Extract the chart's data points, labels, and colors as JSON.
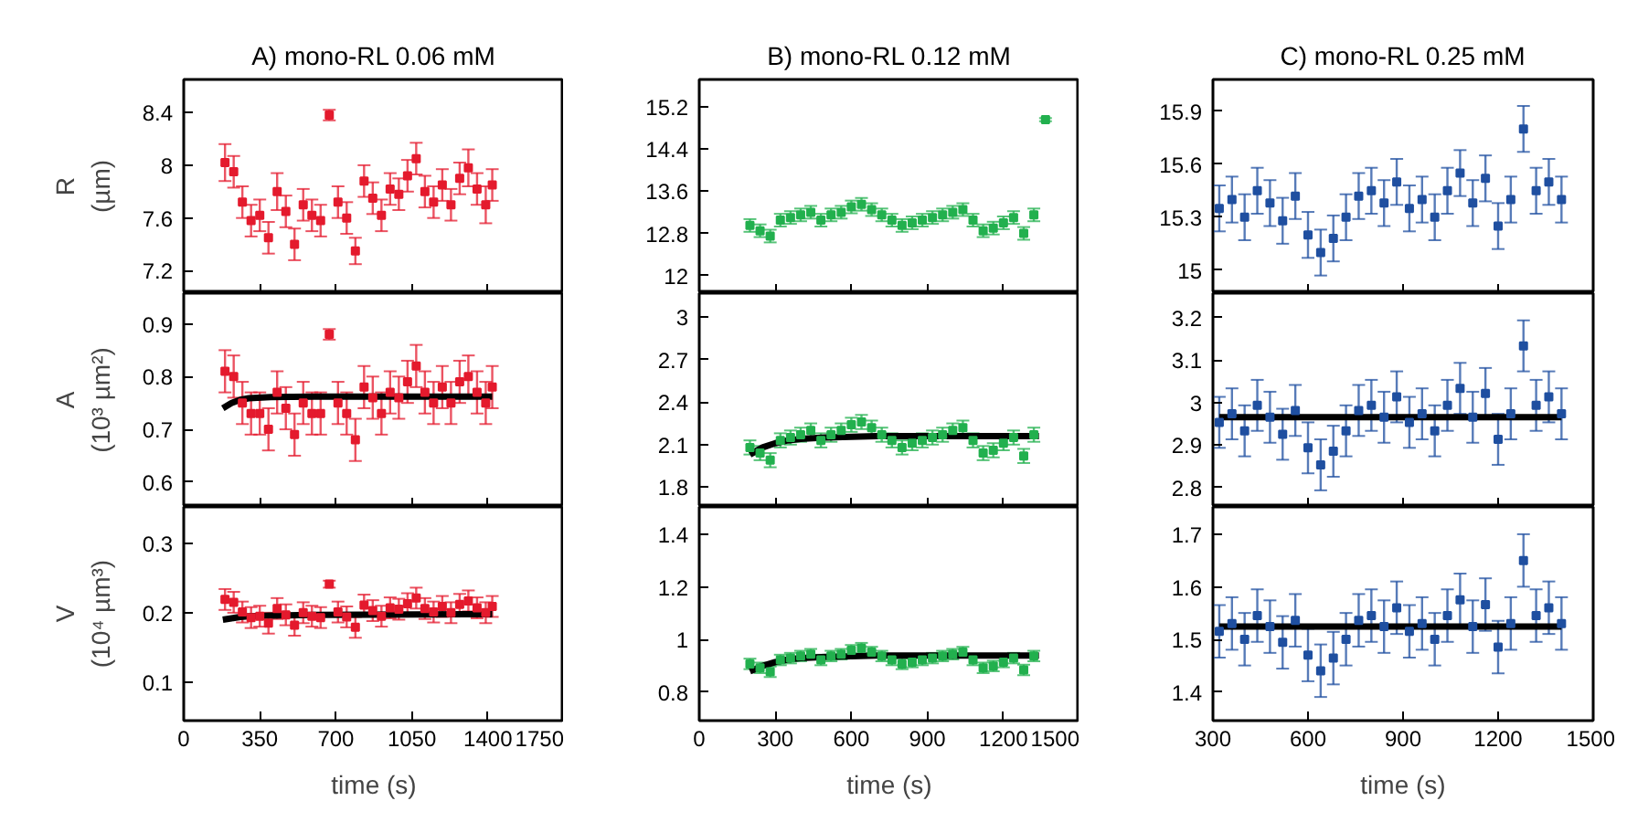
{
  "chart_data": [
    {
      "type": "scatter",
      "title": "A) mono-RL 0.06 mM",
      "ylabel": "R\n(µm)",
      "marker": "square",
      "tick_labels": "y",
      "xlim": [
        0,
        1750
      ],
      "xticks": [
        0,
        350,
        700,
        1050,
        1400,
        1750
      ],
      "ylim": [
        7.03,
        8.65
      ],
      "yticks": [
        7.2,
        7.6,
        8,
        8.4
      ],
      "x": [
        190,
        230,
        270,
        310,
        350,
        390,
        430,
        470,
        510,
        550,
        590,
        630,
        670,
        710,
        750,
        790,
        830,
        870,
        910,
        950,
        990,
        1030,
        1070,
        1110,
        1150,
        1190,
        1230,
        1270,
        1310,
        1350,
        1390,
        1420
      ],
      "series": [
        {
          "color": "#e41a2d",
          "values": [
            8.02,
            7.95,
            7.72,
            7.58,
            7.62,
            7.45,
            7.8,
            7.65,
            7.4,
            7.7,
            7.62,
            7.58,
            8.38,
            7.72,
            7.6,
            7.35,
            7.88,
            7.75,
            7.62,
            7.82,
            7.78,
            7.92,
            8.05,
            7.8,
            7.72,
            7.85,
            7.7,
            7.9,
            7.98,
            7.82,
            7.7,
            7.85
          ],
          "errors": [
            0.14,
            0.12,
            0.12,
            0.12,
            0.12,
            0.12,
            0.14,
            0.12,
            0.12,
            0.12,
            0.12,
            0.12,
            0.04,
            0.12,
            0.12,
            0.1,
            0.12,
            0.12,
            0.12,
            0.12,
            0.12,
            0.12,
            0.12,
            0.12,
            0.12,
            0.12,
            0.12,
            0.12,
            0.14,
            0.12,
            0.14,
            0.12
          ]
        }
      ]
    },
    {
      "type": "scatter",
      "title": "B) mono-RL 0.12 mM",
      "marker": "square",
      "tick_labels": "y",
      "xlim": [
        0,
        1500
      ],
      "xticks": [
        0,
        300,
        600,
        900,
        1200,
        1500
      ],
      "ylim": [
        11.67,
        15.71
      ],
      "yticks": [
        12,
        12.8,
        13.6,
        14.4,
        15.2
      ],
      "x": [
        200,
        240,
        280,
        320,
        360,
        400,
        440,
        480,
        520,
        560,
        600,
        640,
        680,
        720,
        760,
        800,
        840,
        880,
        920,
        960,
        1000,
        1040,
        1080,
        1120,
        1160,
        1200,
        1240,
        1280,
        1320,
        1366
      ],
      "series": [
        {
          "color": "#22b04e",
          "values": [
            12.95,
            12.85,
            12.75,
            13.05,
            13.1,
            13.15,
            13.2,
            13.05,
            13.15,
            13.2,
            13.3,
            13.35,
            13.25,
            13.15,
            13.05,
            12.95,
            13.0,
            13.05,
            13.1,
            13.15,
            13.2,
            13.25,
            13.05,
            12.85,
            12.9,
            13.0,
            13.1,
            12.8,
            13.15,
            14.95
          ],
          "errors": [
            0.12,
            0.12,
            0.12,
            0.12,
            0.12,
            0.12,
            0.12,
            0.12,
            0.12,
            0.12,
            0.12,
            0.12,
            0.12,
            0.12,
            0.12,
            0.12,
            0.12,
            0.12,
            0.12,
            0.12,
            0.12,
            0.12,
            0.12,
            0.12,
            0.12,
            0.12,
            0.12,
            0.12,
            0.12,
            0.03
          ]
        }
      ]
    },
    {
      "type": "scatter",
      "title": "C) mono-RL 0.25 mM",
      "marker": "square",
      "tick_labels": "y",
      "xlim": [
        300,
        1500
      ],
      "xticks": [
        300,
        600,
        900,
        1200,
        1500
      ],
      "ylim": [
        14.87,
        16.08
      ],
      "yticks": [
        15,
        15.3,
        15.6,
        15.9
      ],
      "x": [
        320,
        360,
        400,
        440,
        480,
        520,
        560,
        600,
        640,
        680,
        720,
        760,
        800,
        840,
        880,
        920,
        960,
        1000,
        1040,
        1080,
        1120,
        1160,
        1200,
        1240,
        1280,
        1320,
        1360,
        1400
      ],
      "series": [
        {
          "color": "#1f4fa0",
          "values": [
            15.35,
            15.4,
            15.3,
            15.45,
            15.38,
            15.28,
            15.42,
            15.2,
            15.1,
            15.18,
            15.3,
            15.42,
            15.45,
            15.38,
            15.5,
            15.35,
            15.4,
            15.3,
            15.45,
            15.55,
            15.38,
            15.52,
            15.25,
            15.4,
            15.8,
            15.45,
            15.5,
            15.4
          ],
          "errors": [
            0.13,
            0.13,
            0.13,
            0.13,
            0.13,
            0.13,
            0.13,
            0.13,
            0.13,
            0.13,
            0.13,
            0.13,
            0.13,
            0.13,
            0.13,
            0.13,
            0.13,
            0.13,
            0.13,
            0.13,
            0.13,
            0.13,
            0.13,
            0.13,
            0.13,
            0.13,
            0.13,
            0.13
          ]
        }
      ]
    },
    {
      "type": "scatter",
      "ylabel": "A\n(10³ µm²)",
      "marker": "square",
      "tick_labels": "y",
      "xlim": [
        0,
        1750
      ],
      "xticks": [
        0,
        350,
        700,
        1050,
        1400,
        1750
      ],
      "ylim": [
        0.553,
        0.958
      ],
      "yticks": [
        0.6,
        0.7,
        0.8,
        0.9
      ],
      "x": [
        190,
        230,
        270,
        310,
        350,
        390,
        430,
        470,
        510,
        550,
        590,
        630,
        670,
        710,
        750,
        790,
        830,
        870,
        910,
        950,
        990,
        1030,
        1070,
        1110,
        1150,
        1190,
        1230,
        1270,
        1310,
        1350,
        1390,
        1420
      ],
      "series": [
        {
          "color": "#e41a2d",
          "values": [
            0.81,
            0.8,
            0.75,
            0.73,
            0.73,
            0.7,
            0.77,
            0.74,
            0.69,
            0.75,
            0.73,
            0.73,
            0.88,
            0.75,
            0.73,
            0.68,
            0.78,
            0.76,
            0.73,
            0.77,
            0.76,
            0.79,
            0.82,
            0.77,
            0.75,
            0.78,
            0.75,
            0.79,
            0.8,
            0.77,
            0.75,
            0.78
          ],
          "errors": [
            0.04,
            0.04,
            0.04,
            0.04,
            0.04,
            0.04,
            0.04,
            0.04,
            0.04,
            0.04,
            0.04,
            0.04,
            0.01,
            0.04,
            0.04,
            0.04,
            0.04,
            0.04,
            0.04,
            0.04,
            0.04,
            0.04,
            0.04,
            0.04,
            0.04,
            0.04,
            0.04,
            0.04,
            0.04,
            0.04,
            0.04,
            0.04
          ]
        },
        {
          "type": "line",
          "color": "#000000",
          "x": [
            180,
            220,
            260,
            300,
            400,
            600,
            1420
          ],
          "marker": "none",
          "values": [
            0.74,
            0.75,
            0.756,
            0.759,
            0.761,
            0.762,
            0.762
          ]
        }
      ]
    },
    {
      "type": "scatter",
      "marker": "square",
      "tick_labels": "y",
      "xlim": [
        0,
        1500
      ],
      "xticks": [
        0,
        300,
        600,
        900,
        1200,
        1500
      ],
      "ylim": [
        1.66,
        3.17
      ],
      "yticks": [
        1.8,
        2.1,
        2.4,
        2.7,
        3
      ],
      "x": [
        200,
        240,
        280,
        320,
        360,
        400,
        440,
        480,
        520,
        560,
        600,
        640,
        680,
        720,
        760,
        800,
        840,
        880,
        920,
        960,
        1000,
        1040,
        1080,
        1120,
        1160,
        1200,
        1240,
        1280,
        1320
      ],
      "series": [
        {
          "color": "#22b04e",
          "values": [
            2.08,
            2.04,
            1.99,
            2.13,
            2.15,
            2.17,
            2.2,
            2.13,
            2.17,
            2.2,
            2.24,
            2.26,
            2.22,
            2.17,
            2.13,
            2.08,
            2.11,
            2.13,
            2.15,
            2.17,
            2.2,
            2.22,
            2.13,
            2.04,
            2.06,
            2.11,
            2.15,
            2.02,
            2.17
          ],
          "errors": [
            0.05,
            0.05,
            0.05,
            0.05,
            0.05,
            0.05,
            0.05,
            0.05,
            0.05,
            0.05,
            0.05,
            0.05,
            0.05,
            0.05,
            0.05,
            0.05,
            0.05,
            0.05,
            0.05,
            0.05,
            0.05,
            0.05,
            0.05,
            0.05,
            0.05,
            0.05,
            0.05,
            0.05,
            0.05
          ]
        },
        {
          "type": "line",
          "color": "#000000",
          "x": [
            200,
            250,
            300,
            350,
            400,
            500,
            700,
            1340
          ],
          "marker": "none",
          "values": [
            2.03,
            2.08,
            2.11,
            2.13,
            2.14,
            2.15,
            2.16,
            2.16
          ]
        }
      ]
    },
    {
      "type": "scatter",
      "marker": "square",
      "tick_labels": "y",
      "xlim": [
        300,
        1500
      ],
      "xticks": [
        300,
        600,
        900,
        1200,
        1500
      ],
      "ylim": [
        2.754,
        3.257
      ],
      "yticks": [
        2.8,
        2.9,
        3,
        3.1,
        3.2
      ],
      "x": [
        320,
        360,
        400,
        440,
        480,
        520,
        560,
        600,
        640,
        680,
        720,
        760,
        800,
        840,
        880,
        920,
        960,
        1000,
        1040,
        1080,
        1120,
        1160,
        1200,
        1240,
        1280,
        1320,
        1360,
        1400
      ],
      "series": [
        {
          "color": "#1f4fa0",
          "values": [
            2.953,
            2.973,
            2.933,
            2.993,
            2.965,
            2.925,
            2.981,
            2.893,
            2.853,
            2.885,
            2.933,
            2.981,
            2.993,
            2.965,
            3.013,
            2.953,
            2.973,
            2.933,
            2.993,
            3.033,
            2.965,
            3.021,
            2.913,
            2.973,
            3.133,
            2.993,
            3.013,
            2.973
          ],
          "errors": [
            0.06,
            0.06,
            0.06,
            0.06,
            0.06,
            0.06,
            0.06,
            0.06,
            0.06,
            0.06,
            0.06,
            0.06,
            0.06,
            0.06,
            0.06,
            0.06,
            0.06,
            0.06,
            0.06,
            0.06,
            0.06,
            0.06,
            0.06,
            0.06,
            0.06,
            0.06,
            0.06,
            0.06
          ]
        },
        {
          "type": "line",
          "color": "#000000",
          "x": [
            320,
            1400
          ],
          "marker": "none",
          "values": [
            2.965,
            2.965
          ]
        }
      ]
    },
    {
      "type": "scatter",
      "ylabel": "V\n(10⁴ µm³)",
      "xlabel": "time (s)",
      "marker": "square",
      "xlim": [
        0,
        1750
      ],
      "xticks": [
        0,
        350,
        700,
        1050,
        1400,
        1750
      ],
      "ylim": [
        0.045,
        0.352
      ],
      "yticks": [
        0.1,
        0.2,
        0.3
      ],
      "x": [
        190,
        230,
        270,
        310,
        350,
        390,
        430,
        470,
        510,
        550,
        590,
        630,
        670,
        710,
        750,
        790,
        830,
        870,
        910,
        950,
        990,
        1030,
        1070,
        1110,
        1150,
        1190,
        1230,
        1270,
        1310,
        1350,
        1390,
        1420
      ],
      "series": [
        {
          "color": "#e41a2d",
          "values": [
            0.219,
            0.215,
            0.201,
            0.193,
            0.195,
            0.185,
            0.206,
            0.197,
            0.182,
            0.2,
            0.195,
            0.193,
            0.241,
            0.201,
            0.194,
            0.179,
            0.211,
            0.203,
            0.195,
            0.207,
            0.205,
            0.213,
            0.221,
            0.206,
            0.201,
            0.209,
            0.2,
            0.212,
            0.217,
            0.207,
            0.2,
            0.209
          ],
          "errors": [
            0.015,
            0.015,
            0.015,
            0.015,
            0.015,
            0.015,
            0.015,
            0.015,
            0.015,
            0.015,
            0.015,
            0.015,
            0.005,
            0.015,
            0.015,
            0.015,
            0.015,
            0.015,
            0.015,
            0.015,
            0.015,
            0.015,
            0.015,
            0.015,
            0.015,
            0.015,
            0.015,
            0.015,
            0.015,
            0.015,
            0.015,
            0.015
          ]
        },
        {
          "type": "line",
          "color": "#000000",
          "x": [
            180,
            220,
            260,
            300,
            400,
            600,
            1420
          ],
          "marker": "none",
          "values": [
            0.19,
            0.192,
            0.194,
            0.195,
            0.196,
            0.197,
            0.198
          ]
        }
      ]
    },
    {
      "type": "scatter",
      "xlabel": "time (s)",
      "marker": "square",
      "xlim": [
        0,
        1500
      ],
      "xticks": [
        0,
        300,
        600,
        900,
        1200,
        1500
      ],
      "ylim": [
        0.692,
        1.506
      ],
      "yticks": [
        0.8,
        1,
        1.2,
        1.4
      ],
      "x": [
        200,
        240,
        280,
        320,
        360,
        400,
        440,
        480,
        520,
        560,
        600,
        640,
        680,
        720,
        760,
        800,
        840,
        880,
        920,
        960,
        1000,
        1040,
        1080,
        1120,
        1160,
        1200,
        1240,
        1280,
        1320
      ],
      "series": [
        {
          "color": "#22b04e",
          "values": [
            0.908,
            0.893,
            0.878,
            0.923,
            0.93,
            0.938,
            0.945,
            0.923,
            0.938,
            0.945,
            0.96,
            0.968,
            0.953,
            0.938,
            0.923,
            0.908,
            0.915,
            0.923,
            0.93,
            0.938,
            0.945,
            0.953,
            0.923,
            0.893,
            0.9,
            0.915,
            0.93,
            0.885,
            0.938
          ],
          "errors": [
            0.02,
            0.02,
            0.02,
            0.02,
            0.02,
            0.02,
            0.02,
            0.02,
            0.02,
            0.02,
            0.02,
            0.02,
            0.02,
            0.02,
            0.02,
            0.02,
            0.02,
            0.02,
            0.02,
            0.02,
            0.02,
            0.02,
            0.02,
            0.02,
            0.02,
            0.02,
            0.02,
            0.02,
            0.02
          ]
        },
        {
          "type": "line",
          "color": "#000000",
          "x": [
            200,
            250,
            300,
            350,
            400,
            500,
            700,
            1340
          ],
          "marker": "none",
          "values": [
            0.88,
            0.9,
            0.915,
            0.925,
            0.93,
            0.935,
            0.94,
            0.94
          ]
        }
      ]
    },
    {
      "type": "scatter",
      "xlabel": "time (s)",
      "marker": "square",
      "xlim": [
        300,
        1500
      ],
      "xticks": [
        300,
        600,
        900,
        1200,
        1500
      ],
      "ylim": [
        1.346,
        1.753
      ],
      "yticks": [
        1.4,
        1.5,
        1.6,
        1.7
      ],
      "x": [
        320,
        360,
        400,
        440,
        480,
        520,
        560,
        600,
        640,
        680,
        720,
        760,
        800,
        840,
        880,
        920,
        960,
        1000,
        1040,
        1080,
        1120,
        1160,
        1200,
        1240,
        1280,
        1320,
        1360,
        1400
      ],
      "series": [
        {
          "color": "#1f4fa0",
          "values": [
            1.516,
            1.531,
            1.501,
            1.546,
            1.525,
            1.495,
            1.537,
            1.471,
            1.441,
            1.465,
            1.501,
            1.537,
            1.546,
            1.525,
            1.561,
            1.516,
            1.531,
            1.501,
            1.546,
            1.576,
            1.525,
            1.567,
            1.486,
            1.531,
            1.651,
            1.546,
            1.561,
            1.531
          ],
          "errors": [
            0.05,
            0.05,
            0.05,
            0.05,
            0.05,
            0.05,
            0.05,
            0.05,
            0.05,
            0.05,
            0.05,
            0.05,
            0.05,
            0.05,
            0.05,
            0.05,
            0.05,
            0.05,
            0.05,
            0.05,
            0.05,
            0.05,
            0.05,
            0.05,
            0.05,
            0.05,
            0.05,
            0.05
          ]
        },
        {
          "type": "line",
          "color": "#000000",
          "x": [
            320,
            1400
          ],
          "marker": "none",
          "values": [
            1.525,
            1.525
          ]
        }
      ]
    }
  ]
}
